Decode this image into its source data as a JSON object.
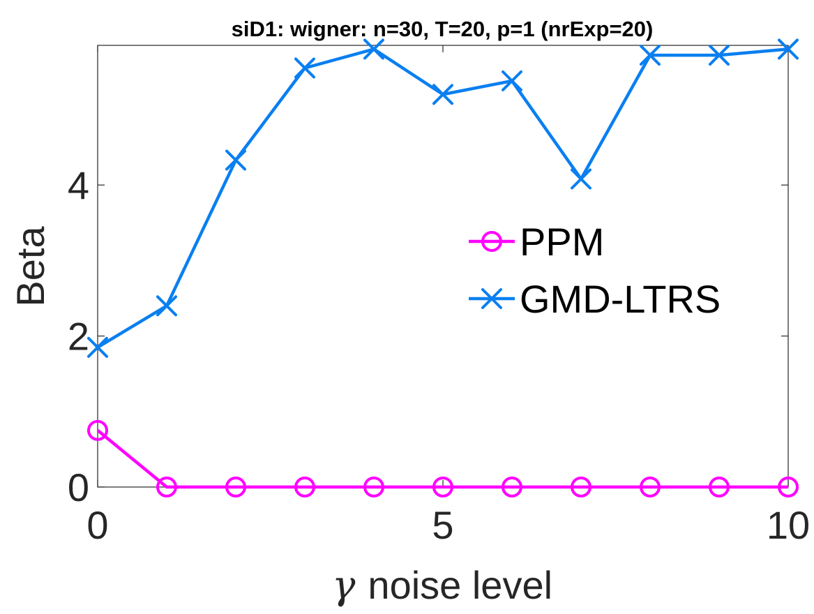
{
  "chart_data": {
    "type": "line",
    "title": "siD1: wigner: n=30, T=20, p=1 (nrExp=20)",
    "xlabel_symbol": "γ",
    "xlabel_text": "noise level",
    "ylabel": "Beta",
    "xlim": [
      0,
      10
    ],
    "ylim": [
      0,
      5.85
    ],
    "xticks": [
      0,
      5,
      10
    ],
    "yticks": [
      0,
      2,
      4
    ],
    "x": [
      0,
      1,
      2,
      3,
      4,
      5,
      6,
      7,
      8,
      9,
      10
    ],
    "series": [
      {
        "name": "PPM",
        "marker": "circle",
        "color": "#ff00ff",
        "values": [
          0.75,
          0,
          0,
          0,
          0,
          0,
          0,
          0,
          0,
          0,
          0
        ]
      },
      {
        "name": "GMD-LTRS",
        "marker": "x",
        "color": "#0a7ff0",
        "values": [
          1.85,
          2.4,
          4.33,
          5.55,
          5.8,
          5.2,
          5.38,
          4.08,
          5.72,
          5.72,
          5.8
        ]
      }
    ],
    "legend_position": "right"
  }
}
